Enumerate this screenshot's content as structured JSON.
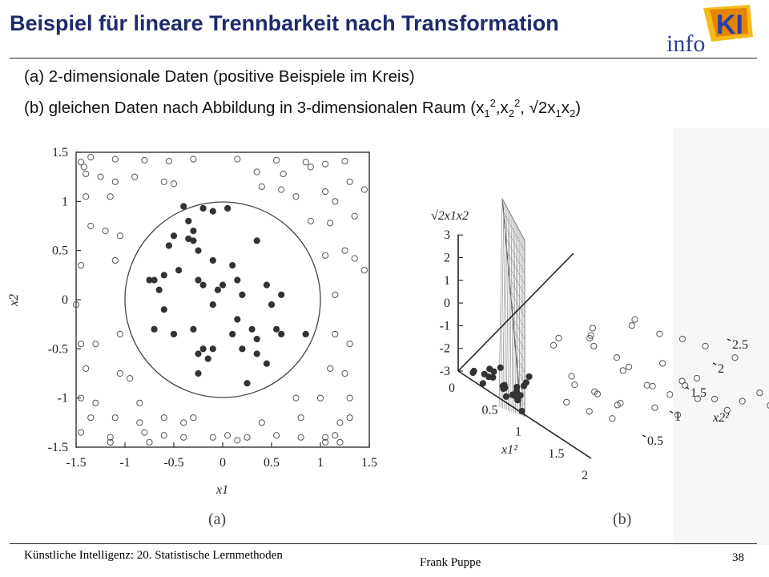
{
  "slide": {
    "title": "Beispiel für lineare Trennbarkeit nach Transformation",
    "logo_text": "info",
    "logo_mark": "KI",
    "sub_a": "(a) 2-dimensionale Daten (positive Beispiele im Kreis)",
    "sub_b_prefix": "(b) gleichen Daten nach Abbildung in 3-dimensionalen Raum (x",
    "sub_b_s1": "1",
    "sup_2": "2",
    "sub_b_comma1": ",x",
    "sub_b_s2": "2",
    "sub_b_mid": ", √2x",
    "sub_b_s3": "1",
    "sub_b_x": "x",
    "sub_b_s4": "2",
    "sub_b_end": ")",
    "footer_left": "Künstliche Intelligenz: 20. Statistische Lernmethoden",
    "footer_center": "Frank Puppe",
    "footer_right": "38"
  },
  "colors": {
    "title": "#1f2a6e",
    "marker_edge": "#555555",
    "positive_fill": "#333333"
  },
  "chart_data": [
    {
      "type": "scatter",
      "panel_label": "(a)",
      "xlabel": "x1",
      "ylabel": "x2",
      "xlim": [
        -1.5,
        1.5
      ],
      "ylim": [
        -1.5,
        1.5
      ],
      "xticks": [
        "-1.5",
        "-1",
        "-0.5",
        "0",
        "0.5",
        "1",
        "1.5"
      ],
      "yticks": [
        "1.5",
        "1",
        "0.5",
        "0",
        "-0.5",
        "-1",
        "-1.5"
      ],
      "circle_radius": 1.0,
      "series": [
        {
          "marker": "filled",
          "points": [
            [
              -0.4,
              0.95
            ],
            [
              -0.2,
              0.93
            ],
            [
              -0.1,
              0.9
            ],
            [
              0.05,
              0.93
            ],
            [
              -0.35,
              0.8
            ],
            [
              -0.3,
              0.7
            ],
            [
              -0.5,
              0.65
            ],
            [
              -0.35,
              0.62
            ],
            [
              -0.3,
              0.6
            ],
            [
              -0.55,
              0.55
            ],
            [
              -0.25,
              0.5
            ],
            [
              -0.1,
              0.4
            ],
            [
              0.35,
              0.6
            ],
            [
              -0.45,
              0.3
            ],
            [
              -0.6,
              0.25
            ],
            [
              -0.25,
              0.2
            ],
            [
              0.1,
              0.35
            ],
            [
              -0.75,
              0.2
            ],
            [
              -0.7,
              0.2
            ],
            [
              0.15,
              0.2
            ],
            [
              -0.2,
              0.15
            ],
            [
              0.0,
              0.15
            ],
            [
              0.45,
              0.15
            ],
            [
              -0.05,
              0.1
            ],
            [
              0.6,
              0.05
            ],
            [
              -0.65,
              0.1
            ],
            [
              0.2,
              0.05
            ],
            [
              -0.1,
              -0.05
            ],
            [
              0.5,
              -0.05
            ],
            [
              -0.6,
              -0.1
            ],
            [
              0.15,
              -0.2
            ],
            [
              0.3,
              -0.3
            ],
            [
              0.55,
              -0.3
            ],
            [
              0.85,
              -0.35
            ],
            [
              -0.7,
              -0.3
            ],
            [
              -0.3,
              -0.3
            ],
            [
              0.1,
              -0.35
            ],
            [
              -0.5,
              -0.35
            ],
            [
              0.35,
              -0.4
            ],
            [
              0.6,
              -0.35
            ],
            [
              -0.1,
              -0.5
            ],
            [
              -0.2,
              -0.5
            ],
            [
              -0.25,
              -0.55
            ],
            [
              -0.15,
              -0.6
            ],
            [
              0.35,
              -0.55
            ],
            [
              0.2,
              -0.5
            ],
            [
              0.45,
              -0.65
            ],
            [
              -0.25,
              -0.75
            ],
            [
              0.25,
              -0.85
            ]
          ]
        },
        {
          "marker": "hollow",
          "points": [
            [
              -1.45,
              1.4
            ],
            [
              -1.42,
              1.35
            ],
            [
              -1.35,
              1.45
            ],
            [
              -1.1,
              1.43
            ],
            [
              -0.8,
              1.42
            ],
            [
              -0.55,
              1.41
            ],
            [
              -0.3,
              1.43
            ],
            [
              0.15,
              1.43
            ],
            [
              0.55,
              1.42
            ],
            [
              0.85,
              1.4
            ],
            [
              1.05,
              1.38
            ],
            [
              1.25,
              1.41
            ],
            [
              -1.4,
              1.28
            ],
            [
              -1.25,
              1.25
            ],
            [
              -1.1,
              1.2
            ],
            [
              -0.9,
              1.25
            ],
            [
              -0.6,
              1.2
            ],
            [
              0.35,
              1.3
            ],
            [
              0.62,
              1.28
            ],
            [
              0.9,
              1.35
            ],
            [
              1.3,
              1.2
            ],
            [
              1.45,
              1.12
            ],
            [
              -1.4,
              1.05
            ],
            [
              -1.15,
              1.05
            ],
            [
              -0.5,
              1.18
            ],
            [
              0.4,
              1.15
            ],
            [
              0.6,
              1.12
            ],
            [
              0.75,
              1.05
            ],
            [
              1.05,
              1.1
            ],
            [
              1.15,
              1.0
            ],
            [
              -1.35,
              0.75
            ],
            [
              -1.2,
              0.7
            ],
            [
              -1.05,
              0.65
            ],
            [
              0.9,
              0.8
            ],
            [
              1.1,
              0.78
            ],
            [
              1.35,
              0.85
            ],
            [
              -1.45,
              0.35
            ],
            [
              -1.1,
              0.4
            ],
            [
              1.05,
              0.45
            ],
            [
              1.25,
              0.5
            ],
            [
              1.35,
              0.42
            ],
            [
              1.45,
              0.3
            ],
            [
              -1.5,
              -0.05
            ],
            [
              1.15,
              0.05
            ],
            [
              -1.45,
              -0.45
            ],
            [
              -1.3,
              -0.45
            ],
            [
              -1.05,
              -0.35
            ],
            [
              1.15,
              -0.35
            ],
            [
              1.3,
              -0.45
            ],
            [
              -1.4,
              -0.7
            ],
            [
              -1.05,
              -0.75
            ],
            [
              -0.95,
              -0.8
            ],
            [
              1.1,
              -0.7
            ],
            [
              1.25,
              -0.75
            ],
            [
              -1.45,
              -1.0
            ],
            [
              -1.3,
              -1.05
            ],
            [
              -0.85,
              -1.05
            ],
            [
              0.75,
              -1.0
            ],
            [
              1.0,
              -1.0
            ],
            [
              1.3,
              -1.0
            ],
            [
              -1.35,
              -1.2
            ],
            [
              -1.1,
              -1.2
            ],
            [
              -0.85,
              -1.25
            ],
            [
              -0.6,
              -1.2
            ],
            [
              -0.4,
              -1.25
            ],
            [
              -0.3,
              -1.2
            ],
            [
              0.4,
              -1.25
            ],
            [
              0.8,
              -1.2
            ],
            [
              1.2,
              -1.25
            ],
            [
              1.3,
              -1.2
            ],
            [
              -1.45,
              -1.35
            ],
            [
              -1.15,
              -1.4
            ],
            [
              -0.8,
              -1.35
            ],
            [
              -0.6,
              -1.38
            ],
            [
              -0.4,
              -1.4
            ],
            [
              -0.1,
              -1.4
            ],
            [
              0.05,
              -1.38
            ],
            [
              0.25,
              -1.4
            ],
            [
              0.55,
              -1.38
            ],
            [
              0.8,
              -1.4
            ],
            [
              1.05,
              -1.4
            ],
            [
              1.15,
              -1.38
            ],
            [
              -1.15,
              -1.45
            ],
            [
              -0.75,
              -1.45
            ],
            [
              0.15,
              -1.43
            ],
            [
              1.05,
              -1.45
            ],
            [
              1.2,
              -1.45
            ]
          ]
        }
      ]
    },
    {
      "type": "scatter",
      "panel_label": "(b)",
      "axis_label_vertical": "√2x1x2",
      "axis_label_x": "x1²",
      "axis_label_y": "x2²",
      "vticks": [
        "3",
        "2",
        "1",
        "0",
        "-1",
        "-2",
        "-3"
      ],
      "xticks": [
        "0",
        "0.5",
        "1",
        "1.5",
        "2"
      ],
      "yticks": [
        "2.5",
        "2",
        "1.5",
        "1",
        "0.5"
      ],
      "series": [
        {
          "marker": "filled",
          "points": [
            [
              0.4,
              0.1,
              0.7
            ],
            [
              0.45,
              0.1,
              0.4
            ],
            [
              0.5,
              0.05,
              0.9
            ],
            [
              0.6,
              0.1,
              0.3
            ],
            [
              0.55,
              0.2,
              0.0
            ],
            [
              0.35,
              0.15,
              0.1
            ],
            [
              0.3,
              0.1,
              -0.2
            ],
            [
              0.65,
              0.1,
              -0.1
            ],
            [
              0.5,
              0.25,
              -0.4
            ],
            [
              0.6,
              0.3,
              -0.6
            ],
            [
              0.7,
              0.25,
              0.1
            ],
            [
              0.75,
              0.2,
              -0.3
            ],
            [
              0.8,
              0.1,
              0.2
            ],
            [
              0.45,
              0.35,
              -0.7
            ],
            [
              0.2,
              0.05,
              0.3
            ],
            [
              0.25,
              0.2,
              -0.1
            ],
            [
              0.85,
              0.15,
              -0.5
            ],
            [
              0.9,
              0.05,
              0.6
            ],
            [
              0.55,
              0.45,
              -0.9
            ],
            [
              0.7,
              0.4,
              -0.2
            ],
            [
              0.15,
              0.1,
              0.0
            ],
            [
              0.95,
              0.1,
              1.2
            ],
            [
              0.6,
              0.05,
              1.3
            ],
            [
              0.85,
              0.3,
              0.8
            ]
          ]
        },
        {
          "marker": "hollow",
          "points": [
            [
              1.6,
              1.4,
              2.2
            ],
            [
              1.5,
              1.6,
              1.8
            ],
            [
              1.8,
              1.7,
              1.5
            ],
            [
              2.0,
              1.9,
              1.2
            ],
            [
              2.2,
              2.1,
              0.8
            ],
            [
              2.5,
              2.3,
              0.4
            ],
            [
              1.2,
              1.1,
              1.6
            ],
            [
              1.3,
              1.0,
              2.4
            ],
            [
              1.4,
              0.8,
              2.6
            ],
            [
              1.7,
              1.2,
              0.9
            ],
            [
              1.9,
              1.3,
              0.2
            ],
            [
              2.1,
              1.5,
              -0.3
            ],
            [
              2.3,
              1.8,
              -0.8
            ],
            [
              2.6,
              2.0,
              -1.2
            ],
            [
              1.1,
              0.9,
              -0.5
            ],
            [
              1.3,
              1.1,
              -1.0
            ],
            [
              1.5,
              1.3,
              -1.5
            ],
            [
              1.8,
              1.6,
              -1.8
            ],
            [
              2.0,
              1.8,
              -2.2
            ],
            [
              1.2,
              0.7,
              0.6
            ],
            [
              1.4,
              0.9,
              -0.2
            ],
            [
              1.6,
              1.1,
              -0.9
            ],
            [
              1.0,
              0.6,
              1.9
            ],
            [
              1.15,
              0.5,
              2.8
            ],
            [
              2.4,
              1.4,
              1.0
            ],
            [
              2.7,
              1.6,
              0.5
            ],
            [
              2.9,
              1.9,
              0.1
            ],
            [
              3.1,
              2.2,
              -0.4
            ],
            [
              2.2,
              1.0,
              1.5
            ],
            [
              2.5,
              1.2,
              1.9
            ],
            [
              1.9,
              0.8,
              2.1
            ],
            [
              2.8,
              2.4,
              -0.9
            ],
            [
              1.1,
              1.3,
              0.4
            ],
            [
              1.3,
              1.5,
              -0.2
            ],
            [
              1.7,
              1.9,
              -0.6
            ],
            [
              2.0,
              2.2,
              -1.4
            ],
            [
              1.05,
              0.8,
              -1.2
            ],
            [
              1.25,
              1.0,
              -1.7
            ],
            [
              1.45,
              1.2,
              -2.1
            ],
            [
              3.2,
              2.5,
              0.9
            ]
          ]
        }
      ]
    }
  ]
}
